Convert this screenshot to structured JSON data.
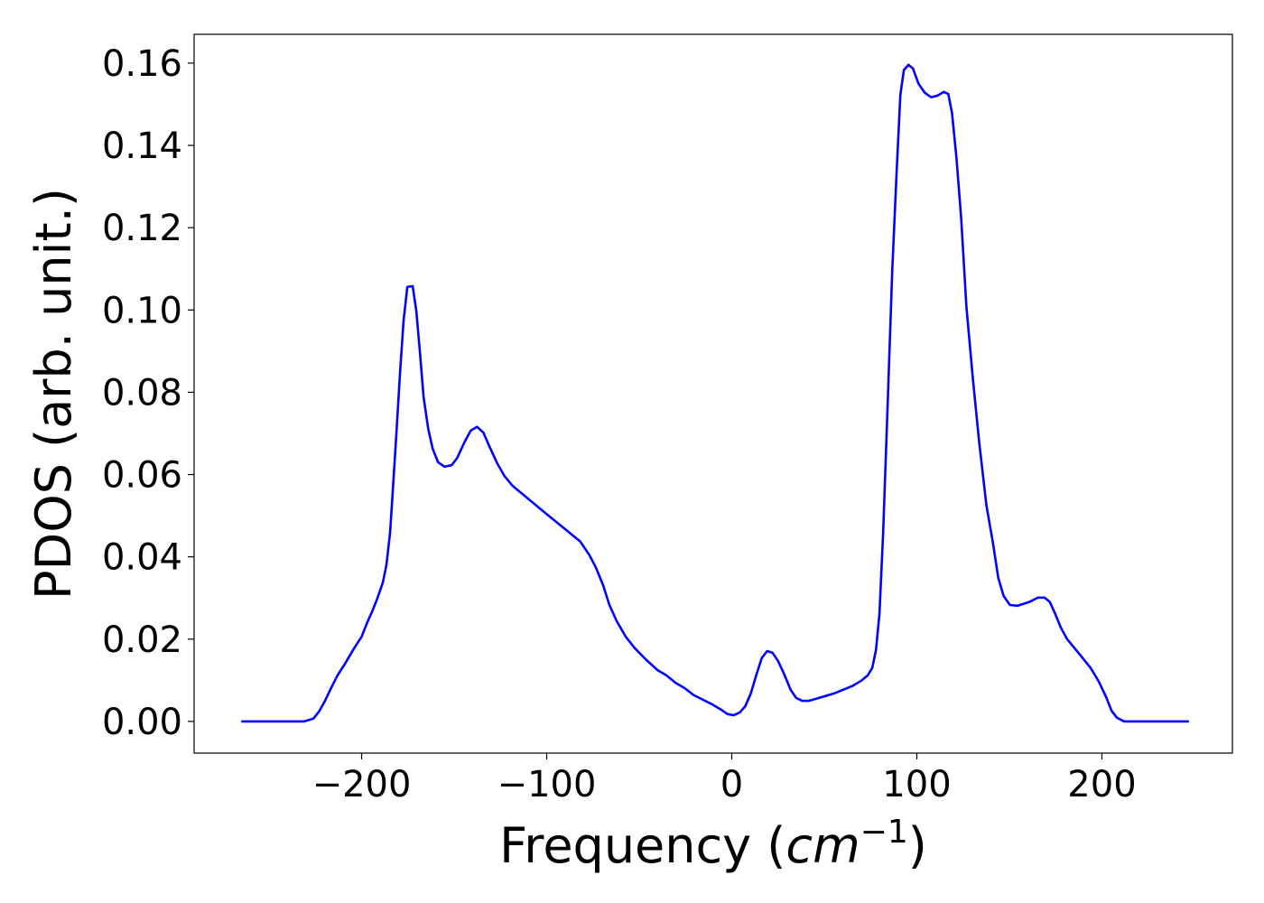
{
  "chart_data": {
    "type": "line",
    "xlabel_parts": [
      "Frequency (",
      "cm",
      "−1",
      ")"
    ],
    "ylabel": "PDOS (arb. unit.)",
    "color": "#0000ff",
    "xlim": [
      -290.5,
      270.5
    ],
    "ylim": [
      -0.0077,
      0.167
    ],
    "xticks": [
      {
        "value": -200,
        "label": "−200"
      },
      {
        "value": -100,
        "label": "−100"
      },
      0,
      100,
      200
    ],
    "yticks": [
      {
        "value": 0,
        "label": "0.00"
      },
      {
        "value": 0.02,
        "label": "0.02"
      },
      {
        "value": 0.04,
        "label": "0.04"
      },
      {
        "value": 0.06,
        "label": "0.06"
      },
      {
        "value": 0.08,
        "label": "0.08"
      },
      {
        "value": 0.1,
        "label": "0.10"
      },
      {
        "value": 0.12,
        "label": "0.12"
      },
      {
        "value": 0.14,
        "label": "0.14"
      },
      {
        "value": 0.16,
        "label": "0.16"
      }
    ],
    "x": [
      -265,
      -231,
      -226,
      -223,
      -220,
      -216.5,
      -213,
      -209,
      -204,
      -200,
      -197,
      -194.4,
      -191.5,
      -188.5,
      -186.6,
      -184.6,
      -183.2,
      -181.2,
      -179.2,
      -177.3,
      -175.3,
      -172.4,
      -170.4,
      -168.5,
      -166.5,
      -164,
      -161.6,
      -158.7,
      -155.2,
      -151.3,
      -148.4,
      -144.5,
      -141,
      -137.6,
      -134.2,
      -130.8,
      -126.8,
      -122.9,
      -118.5,
      -101.4,
      -81.8,
      -76.9,
      -73.5,
      -69.5,
      -66.1,
      -62.2,
      -57.3,
      -52.4,
      -46.5,
      -40.2,
      -35.3,
      -30.4,
      -25.5,
      -20.6,
      -15.7,
      -10.8,
      -5.9,
      -2.4,
      1,
      4.4,
      7.3,
      10.3,
      13.2,
      16.2,
      19.1,
      22,
      25,
      28.4,
      31.8,
      34.8,
      38.2,
      41.6,
      45.5,
      55.3,
      65.1,
      70,
      73.5,
      75.9,
      77.9,
      79.8,
      81.8,
      84.2,
      86.7,
      89.1,
      91.1,
      93,
      95.5,
      97.9,
      100.9,
      104.3,
      107.7,
      111.2,
      114.6,
      117,
      119,
      121.4,
      123.9,
      126.8,
      130.3,
      133.7,
      137.6,
      141,
      144,
      146.9,
      150.3,
      154.3,
      160.6,
      165.5,
      169,
      171.9,
      174.8,
      177.8,
      181.2,
      187.6,
      193.9,
      198.3,
      202.3,
      205.2,
      208.1,
      212,
      247
    ],
    "values": [
      0,
      0,
      0.0007,
      0.0024,
      0.0048,
      0.0081,
      0.0112,
      0.014,
      0.0178,
      0.0206,
      0.024,
      0.0266,
      0.0299,
      0.0338,
      0.038,
      0.0459,
      0.0557,
      0.07,
      0.085,
      0.0975,
      0.1056,
      0.1058,
      0.0996,
      0.0898,
      0.0788,
      0.0711,
      0.0663,
      0.063,
      0.0619,
      0.0623,
      0.064,
      0.0678,
      0.0707,
      0.0716,
      0.0702,
      0.0667,
      0.0628,
      0.0597,
      0.0573,
      0.0509,
      0.0437,
      0.0404,
      0.0375,
      0.0331,
      0.0283,
      0.0244,
      0.0206,
      0.0178,
      0.0151,
      0.0125,
      0.0112,
      0.0094,
      0.0081,
      0.0064,
      0.0053,
      0.0042,
      0.0029,
      0.0018,
      0.0015,
      0.0022,
      0.0037,
      0.0068,
      0.0112,
      0.0154,
      0.0171,
      0.0167,
      0.0147,
      0.0114,
      0.0077,
      0.0057,
      0.005,
      0.005,
      0.0055,
      0.0068,
      0.0086,
      0.0099,
      0.0112,
      0.013,
      0.0173,
      0.0261,
      0.0459,
      0.0766,
      0.1095,
      0.1337,
      0.1523,
      0.1583,
      0.1596,
      0.1587,
      0.155,
      0.1528,
      0.1517,
      0.1521,
      0.153,
      0.1525,
      0.1479,
      0.137,
      0.1227,
      0.1007,
      0.0832,
      0.0678,
      0.0525,
      0.0437,
      0.0349,
      0.0305,
      0.0283,
      0.0281,
      0.029,
      0.0301,
      0.0301,
      0.029,
      0.0261,
      0.0228,
      0.02,
      0.0165,
      0.013,
      0.0097,
      0.0059,
      0.0026,
      0.0009,
      0,
      0
    ]
  }
}
